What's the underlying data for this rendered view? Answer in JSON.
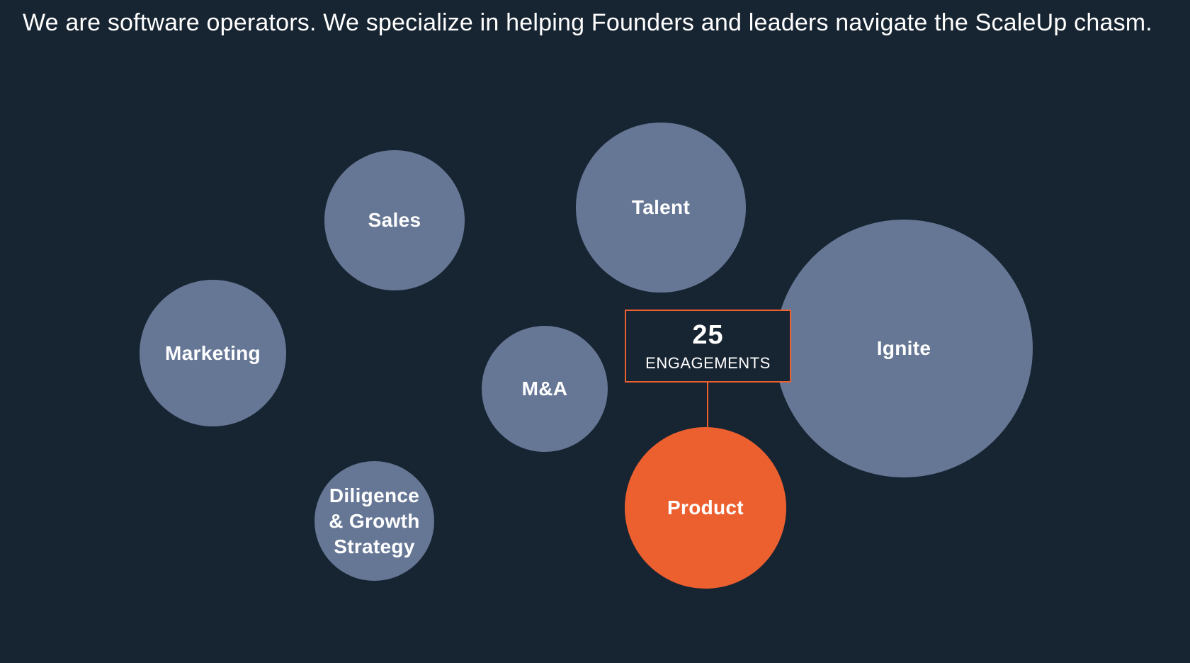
{
  "headline": "We are software operators. We specialize in helping Founders and leaders navigate the ScaleUp chasm.",
  "colors": {
    "background": "#172431",
    "bubble": "#667796",
    "accent": "#ec6030",
    "text": "#ffffff"
  },
  "bubbles": {
    "sales": "Sales",
    "talent": "Talent",
    "marketing": "Marketing",
    "mna": "M&A",
    "ignite": "Ignite",
    "diligence": "Diligence & Growth Strategy",
    "product": "Product"
  },
  "selected_bubble": "Product",
  "tooltip": {
    "count": "25",
    "label": "ENGAGEMENTS"
  }
}
